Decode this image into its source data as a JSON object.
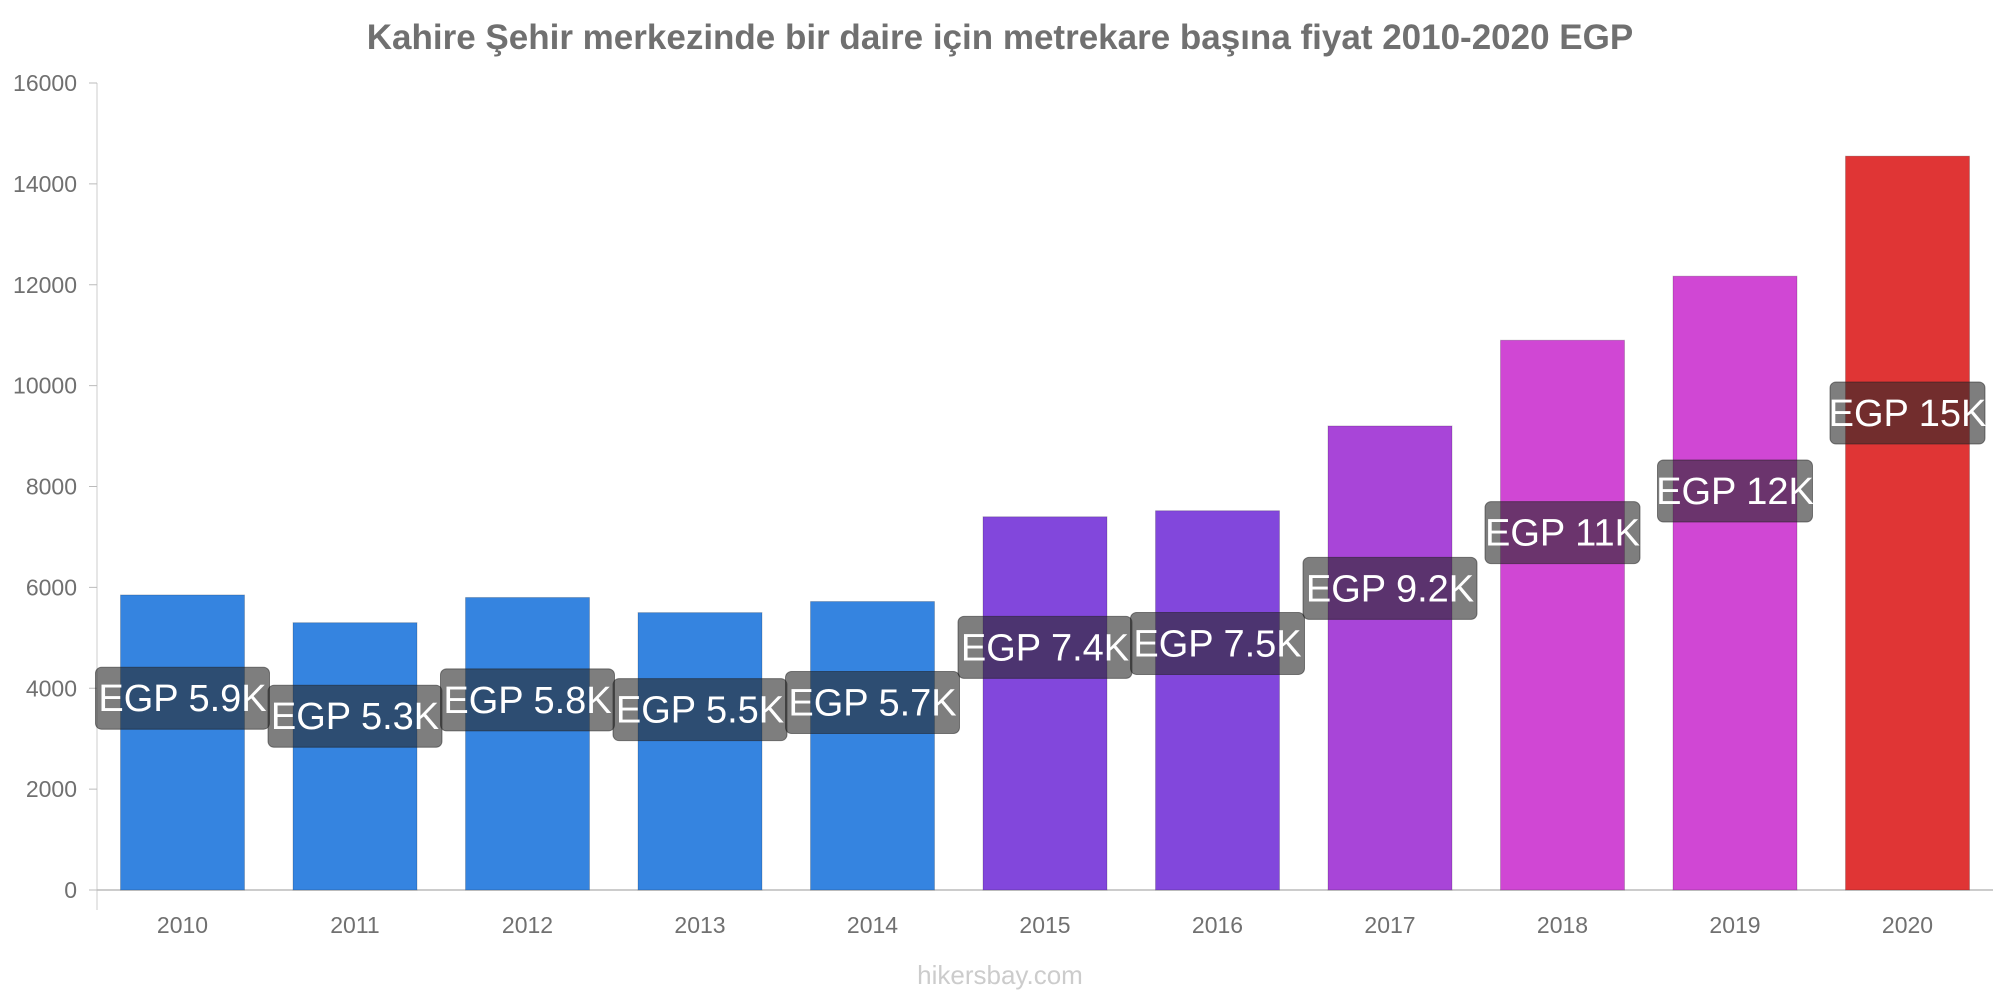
{
  "title": "Kahire Şehir merkezinde bir daire için metrekare başına fiyat 2010-2020 EGP",
  "watermark": "hikersbay.com",
  "chart_data": {
    "type": "bar",
    "title": "Kahire Şehir merkezinde bir daire için metrekare başına fiyat 2010-2020 EGP",
    "xlabel": "",
    "ylabel": "",
    "categories": [
      "2010",
      "2011",
      "2012",
      "2013",
      "2014",
      "2015",
      "2016",
      "2017",
      "2018",
      "2019",
      "2020"
    ],
    "values": [
      5850,
      5300,
      5800,
      5500,
      5720,
      7400,
      7520,
      9200,
      10900,
      12170,
      14550
    ],
    "labels": [
      "EGP 5.9K",
      "EGP 5.3K",
      "EGP 5.8K",
      "EGP 5.5K",
      "EGP 5.7K",
      "EGP 7.4K",
      "EGP 7.5K",
      "EGP 9.2K",
      "EGP 11K",
      "EGP 12K",
      "EGP 15K"
    ],
    "colors": [
      "#3584e0",
      "#3584e0",
      "#3584e0",
      "#3584e0",
      "#3584e0",
      "#8247dc",
      "#8247dc",
      "#a845d8",
      "#d047d4",
      "#d047d4",
      "#e03535"
    ],
    "yticks": [
      "0",
      "2000",
      "4000",
      "6000",
      "8000",
      "10000",
      "12000",
      "14000",
      "16000"
    ],
    "ylim": [
      0,
      16000
    ],
    "grid": false,
    "legend": "none"
  }
}
